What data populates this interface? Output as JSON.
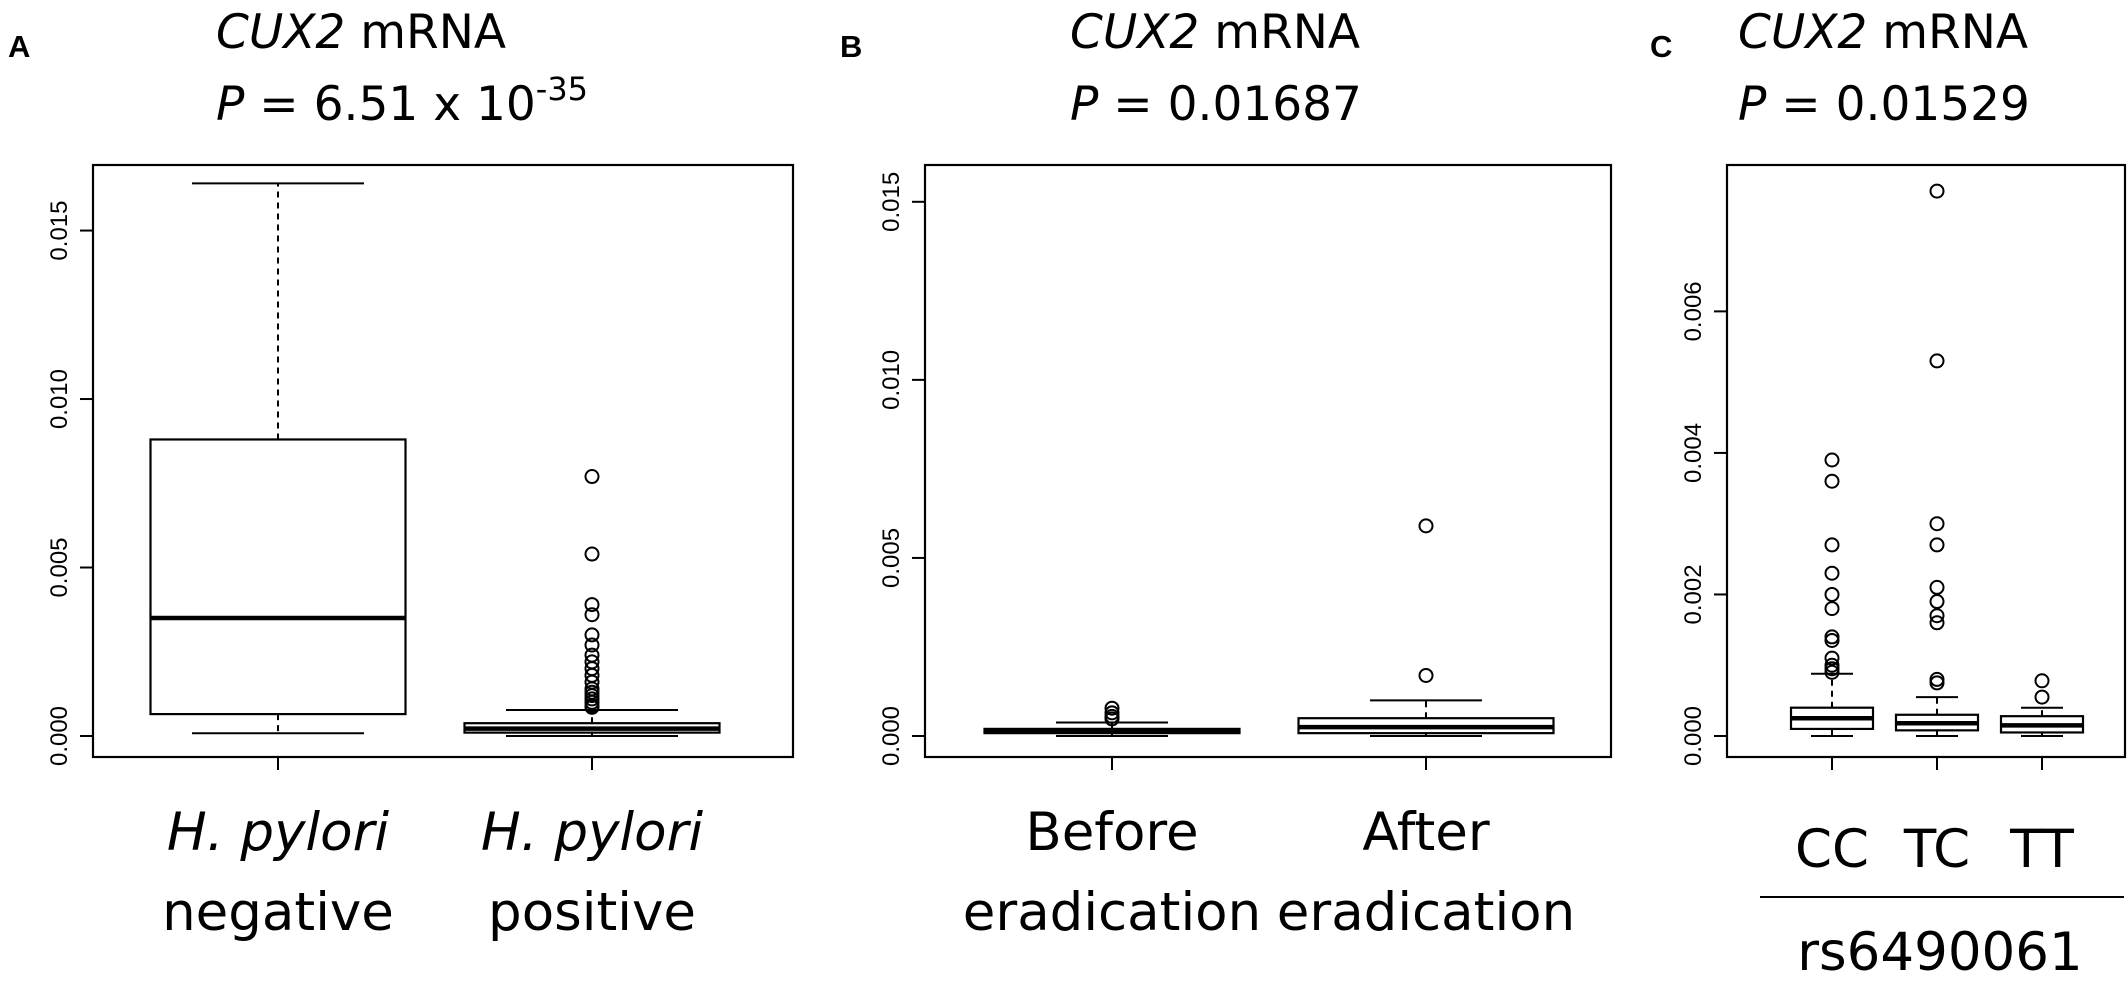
{
  "chart_data": [
    {
      "type": "box",
      "panel_label": "A",
      "gene": "CUX2",
      "title_suffix": " mRNA",
      "p_prefix": "P",
      "p_text": " = 6.51 x 10",
      "p_exponent": "-35",
      "ylim": [
        0,
        0.0165
      ],
      "yticks": [
        "0.000",
        "0.005",
        "0.010",
        "0.015"
      ],
      "ytick_values": [
        0,
        0.005,
        0.01,
        0.015
      ],
      "groups": [
        {
          "label_line1": "H. pylori",
          "line1_italic": true,
          "label_line2": "negative",
          "whisker_low": 8e-05,
          "q1": 0.00065,
          "median": 0.0035,
          "q3": 0.0088,
          "whisker_high": 0.0164,
          "outliers": []
        },
        {
          "label_line1": "H. pylori",
          "line1_italic": true,
          "label_line2": "positive",
          "whisker_low": 0.0,
          "q1": 0.0001,
          "median": 0.00022,
          "q3": 0.00038,
          "whisker_high": 0.00077,
          "outliers": [
            0.0077,
            0.0054,
            0.0039,
            0.0036,
            0.003,
            0.0027,
            0.0024,
            0.0022,
            0.002,
            0.0018,
            0.0016,
            0.0014,
            0.0013,
            0.0012,
            0.0011,
            0.001,
            0.0009,
            0.00085
          ]
        }
      ]
    },
    {
      "type": "box",
      "panel_label": "B",
      "gene": "CUX2",
      "title_suffix": " mRNA",
      "p_prefix": "P",
      "p_text": " = 0.01687",
      "p_exponent": "",
      "ylim": [
        0,
        0.0155
      ],
      "yticks": [
        "0.000",
        "0.005",
        "0.010",
        "0.015"
      ],
      "ytick_values": [
        0,
        0.005,
        0.01,
        0.015
      ],
      "groups": [
        {
          "label_line1": "Before",
          "line1_italic": false,
          "label_line2": "eradication",
          "whisker_low": 0.0,
          "q1": 8e-05,
          "median": 0.00014,
          "q3": 0.0002,
          "whisker_high": 0.00038,
          "outliers": [
            0.00078,
            0.00065,
            0.00055,
            0.00048
          ]
        },
        {
          "label_line1": "After",
          "line1_italic": false,
          "label_line2": "eradication",
          "whisker_low": 0.0,
          "q1": 8e-05,
          "median": 0.00025,
          "q3": 0.0005,
          "whisker_high": 0.001,
          "outliers": [
            0.0059,
            0.0017
          ]
        }
      ]
    },
    {
      "type": "box",
      "panel_label": "C",
      "gene": "CUX2",
      "title_suffix": " mRNA",
      "p_prefix": "P",
      "p_text": " = 0.01529",
      "p_exponent": "",
      "ylim": [
        0,
        0.0078
      ],
      "yticks": [
        "0.000",
        "0.002",
        "0.004",
        "0.006"
      ],
      "ytick_values": [
        0,
        0.002,
        0.004,
        0.006
      ],
      "xlabel": "rs6490061",
      "groups": [
        {
          "label_line1": "CC",
          "line1_italic": false,
          "label_line2": "",
          "whisker_low": 0.0,
          "q1": 0.0001,
          "median": 0.00025,
          "q3": 0.0004,
          "whisker_high": 0.00088,
          "outliers": [
            0.0039,
            0.0036,
            0.0027,
            0.0023,
            0.002,
            0.0018,
            0.0014,
            0.00135,
            0.0011,
            0.001,
            0.00095,
            0.0009
          ]
        },
        {
          "label_line1": "TC",
          "line1_italic": false,
          "label_line2": "",
          "whisker_low": 0.0,
          "q1": 8e-05,
          "median": 0.00018,
          "q3": 0.0003,
          "whisker_high": 0.00055,
          "outliers": [
            0.0077,
            0.0053,
            0.003,
            0.0027,
            0.0021,
            0.0019,
            0.0017,
            0.0016,
            0.0008,
            0.00075
          ]
        },
        {
          "label_line1": "TT",
          "line1_italic": false,
          "label_line2": "",
          "whisker_low": 0.0,
          "q1": 5e-05,
          "median": 0.00015,
          "q3": 0.00028,
          "whisker_high": 0.0004,
          "outliers": [
            0.00078,
            0.00055
          ]
        }
      ]
    }
  ]
}
